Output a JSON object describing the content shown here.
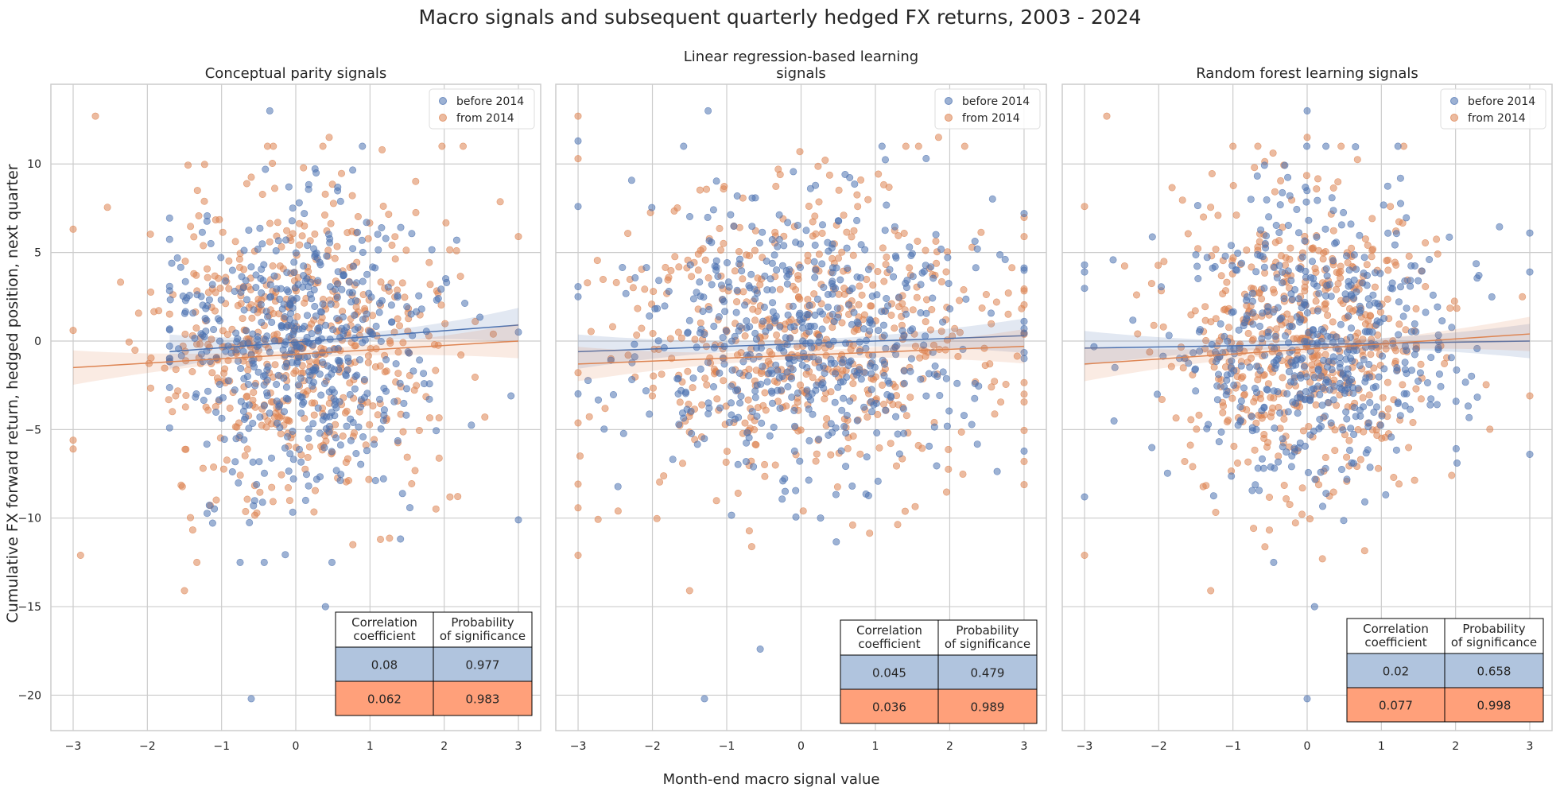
{
  "figure": {
    "suptitle": "Macro signals and subsequent quarterly hedged FX returns, 2003 - 2024",
    "xlabel": "Month-end macro signal value",
    "ylabel": "Cumulative FX forward return, hedged position, next quarter"
  },
  "colors": {
    "before": "#4c72b0",
    "from": "#dd8452",
    "table_before": "#b0c4de",
    "table_from": "#ffa07a",
    "grid": "#cccccc"
  },
  "legend": {
    "position": "top-right",
    "labels": [
      "before 2014",
      "from 2014"
    ]
  },
  "table_headers": {
    "corr": [
      "Correlation",
      "coefficient"
    ],
    "prob": [
      "Probability",
      "of significance"
    ]
  },
  "chart_data": [
    {
      "type": "scatter",
      "title_lines": [
        "Conceptual parity signals"
      ],
      "xlim": [
        -3.3,
        3.3
      ],
      "ylim": [
        -22,
        14.5
      ],
      "xticks": [
        "−3",
        "−2",
        "−1",
        "0",
        "1",
        "2",
        "3"
      ],
      "yticks": [
        "10",
        "5",
        "0",
        "−5",
        "−10",
        "−15",
        "−20"
      ],
      "show_yticks": true,
      "grid": true,
      "params": {
        "sx": [
          0.9,
          0.95
        ],
        "sy": [
          4.0,
          4.4
        ],
        "seed": 11
      },
      "series": [
        {
          "name": "before 2014",
          "x_range": [
            -1.7,
            3.0
          ],
          "y_range": [
            -20.2,
            13.0
          ],
          "fit": {
            "x0": -1.7,
            "y0": -0.6,
            "x1": 3.0,
            "y1": 0.9
          },
          "extreme_points": [
            [
              -0.35,
              13.0
            ],
            [
              -0.6,
              -20.2
            ],
            [
              0.4,
              -15.0
            ],
            [
              3.0,
              -10.1
            ],
            [
              3.0,
              0.5
            ],
            [
              2.9,
              -3.1
            ],
            [
              -0.75,
              -12.5
            ]
          ]
        },
        {
          "name": "from 2014",
          "x_range": [
            -3.0,
            3.0
          ],
          "y_range": [
            -14.1,
            12.7
          ],
          "fit": {
            "x0": -3.0,
            "y0": -1.5,
            "x1": 3.0,
            "y1": 0.0
          },
          "extreme_points": [
            [
              -2.7,
              12.7
            ],
            [
              -3.0,
              0.6
            ],
            [
              -3.0,
              -5.6
            ],
            [
              -3.0,
              -6.1
            ],
            [
              -2.9,
              -12.1
            ],
            [
              -1.5,
              -14.1
            ],
            [
              3.0,
              5.9
            ],
            [
              0.45,
              11.5
            ]
          ]
        }
      ],
      "table": {
        "rows": [
          {
            "period": "before 2014",
            "corr": "0.08",
            "prob": "0.977"
          },
          {
            "period": "from 2014",
            "corr": "0.062",
            "prob": "0.983"
          }
        ]
      }
    },
    {
      "type": "scatter",
      "title_lines": [
        "Linear regression-based learning",
        "signals"
      ],
      "xlim": [
        -3.3,
        3.3
      ],
      "ylim": [
        -22,
        14.5
      ],
      "xticks": [
        "−3",
        "−2",
        "−1",
        "0",
        "1",
        "2",
        "3"
      ],
      "yticks": [],
      "show_yticks": false,
      "grid": true,
      "params": {
        "sx": [
          1.25,
          1.25
        ],
        "sy": [
          4.0,
          4.2
        ],
        "seed": 23
      },
      "series": [
        {
          "name": "before 2014",
          "x_range": [
            -3.0,
            3.0
          ],
          "y_range": [
            -20.2,
            13.0
          ],
          "fit": {
            "x0": -3.0,
            "y0": -0.6,
            "x1": 3.0,
            "y1": 0.3
          },
          "extreme_points": [
            [
              -3.0,
              11.3
            ],
            [
              -3.0,
              7.6
            ],
            [
              -1.25,
              13.0
            ],
            [
              -1.3,
              -20.2
            ],
            [
              -0.55,
              -17.4
            ],
            [
              3.0,
              7.2
            ],
            [
              3.0,
              4.0
            ],
            [
              3.0,
              0.7
            ]
          ]
        },
        {
          "name": "from 2014",
          "x_range": [
            -3.0,
            3.0
          ],
          "y_range": [
            -14.1,
            12.7
          ],
          "fit": {
            "x0": -3.0,
            "y0": -1.3,
            "x1": 3.0,
            "y1": -0.3
          },
          "extreme_points": [
            [
              -3.0,
              12.7
            ],
            [
              -3.0,
              10.3
            ],
            [
              -3.0,
              -12.1
            ],
            [
              -1.5,
              -14.1
            ],
            [
              1.85,
              11.5
            ],
            [
              3.0,
              5.9
            ],
            [
              3.0,
              -3.0
            ]
          ]
        }
      ],
      "table": {
        "rows": [
          {
            "period": "before 2014",
            "corr": "0.045",
            "prob": "0.479"
          },
          {
            "period": "from 2014",
            "corr": "0.036",
            "prob": "0.989"
          }
        ]
      }
    },
    {
      "type": "scatter",
      "title_lines": [
        "Random forest learning signals"
      ],
      "xlim": [
        -3.3,
        3.3
      ],
      "ylim": [
        -22,
        14.5
      ],
      "xticks": [
        "−3",
        "−2",
        "−1",
        "0",
        "1",
        "2",
        "3"
      ],
      "yticks": [],
      "show_yticks": false,
      "grid": true,
      "params": {
        "sx": [
          1.0,
          0.85
        ],
        "sy": [
          4.2,
          4.2
        ],
        "seed": 37
      },
      "series": [
        {
          "name": "before 2014",
          "x_range": [
            -3.0,
            3.0
          ],
          "y_range": [
            -20.2,
            13.0
          ],
          "fit": {
            "x0": -3.0,
            "y0": -0.4,
            "x1": 3.0,
            "y1": 0.0
          },
          "extreme_points": [
            [
              -3.0,
              4.3
            ],
            [
              -3.0,
              3.9
            ],
            [
              -3.0,
              -8.8
            ],
            [
              0.0,
              13.0
            ],
            [
              0.0,
              -20.2
            ],
            [
              0.1,
              -15.0
            ],
            [
              3.0,
              6.1
            ],
            [
              3.0,
              -6.4
            ],
            [
              3.0,
              3.9
            ]
          ]
        },
        {
          "name": "from 2014",
          "x_range": [
            -3.0,
            3.0
          ],
          "y_range": [
            -14.1,
            12.7
          ],
          "fit": {
            "x0": -3.0,
            "y0": -1.3,
            "x1": 3.0,
            "y1": 0.4
          },
          "extreme_points": [
            [
              -2.7,
              12.7
            ],
            [
              -3.0,
              7.6
            ],
            [
              -3.0,
              -12.1
            ],
            [
              -1.3,
              -14.1
            ],
            [
              0.0,
              11.5
            ],
            [
              2.9,
              2.5
            ],
            [
              3.0,
              -3.1
            ]
          ]
        }
      ],
      "table": {
        "rows": [
          {
            "period": "before 2014",
            "corr": "0.02",
            "prob": "0.658"
          },
          {
            "period": "from 2014",
            "corr": "0.077",
            "prob": "0.998"
          }
        ]
      }
    }
  ]
}
